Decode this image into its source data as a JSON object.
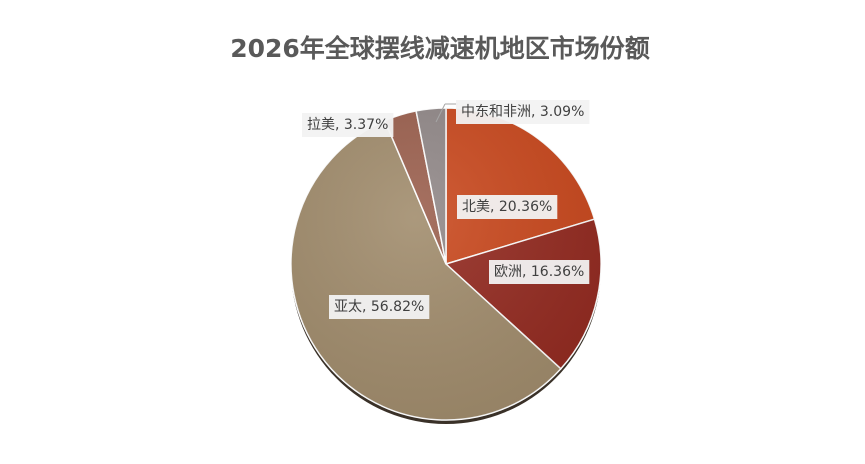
{
  "chart_data": {
    "type": "pie",
    "title": "2026年全球摆线减速机地区市场份额",
    "categories": [
      "北美",
      "欧洲",
      "亚太",
      "拉美",
      "中东和非洲"
    ],
    "values": [
      20.36,
      16.36,
      56.82,
      3.37,
      3.09
    ],
    "value_labels": [
      ", 20.36%",
      ", 16.36%",
      ", 56.82%",
      ", 3.37%",
      ", 3.09%"
    ],
    "colors": [
      "#c9471c",
      "#93291f",
      "#a08b6b",
      "#9a5e4c",
      "#908787"
    ]
  }
}
